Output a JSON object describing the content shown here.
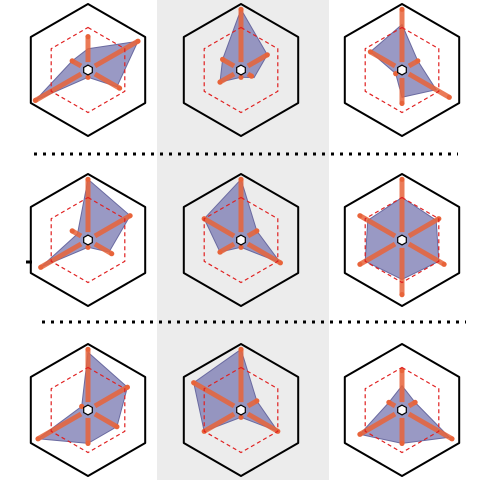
{
  "chart_data": {
    "type": "radar",
    "layout": {
      "rows": 3,
      "cols": 3,
      "highlight_column": 1
    },
    "max_value": 1.0,
    "reference_level": 0.7,
    "center_hole_level": 0.12,
    "axes_count": 6,
    "panels": [
      {
        "row": 0,
        "col": 0,
        "values": [
          0.35,
          0.95,
          0.55,
          0.12,
          1.0,
          0.3
        ],
        "spikes": [
          0.55,
          0.95,
          0.6,
          0.12,
          1.0,
          0.3
        ]
      },
      {
        "row": 0,
        "col": 1,
        "values": [
          1.0,
          0.5,
          0.25,
          0.12,
          0.4,
          0.35
        ],
        "spikes": [
          1.0,
          0.5,
          0.2,
          0.12,
          0.4,
          0.35
        ]
      },
      {
        "row": 0,
        "col": 2,
        "values": [
          0.75,
          0.3,
          0.65,
          0.45,
          0.12,
          0.6
        ],
        "spikes": [
          1.0,
          0.3,
          0.9,
          0.55,
          0.12,
          0.6
        ]
      },
      {
        "row": 1,
        "col": 0,
        "values": [
          1.0,
          0.8,
          0.4,
          0.12,
          0.9,
          0.2
        ],
        "spikes": [
          1.0,
          0.8,
          0.45,
          0.12,
          0.9,
          0.3
        ]
      },
      {
        "row": 1,
        "col": 1,
        "values": [
          1.0,
          0.3,
          0.75,
          0.12,
          0.4,
          0.7
        ],
        "spikes": [
          1.0,
          0.3,
          0.75,
          0.12,
          0.4,
          0.7
        ]
      },
      {
        "row": 1,
        "col": 2,
        "values": [
          0.7,
          0.65,
          0.7,
          0.65,
          0.7,
          0.65
        ],
        "spikes": [
          1.0,
          0.7,
          0.8,
          0.9,
          0.8,
          0.8
        ]
      },
      {
        "row": 2,
        "col": 0,
        "values": [
          0.95,
          0.75,
          0.55,
          0.55,
          0.95,
          0.12
        ],
        "spikes": [
          1.0,
          0.75,
          0.55,
          0.55,
          0.95,
          0.12
        ]
      },
      {
        "row": 2,
        "col": 1,
        "values": [
          1.0,
          0.3,
          0.7,
          0.12,
          0.7,
          0.9
        ],
        "spikes": [
          1.0,
          0.3,
          0.7,
          0.12,
          0.7,
          0.9
        ]
      },
      {
        "row": 2,
        "col": 2,
        "values": [
          0.4,
          0.25,
          0.9,
          0.55,
          0.8,
          0.25
        ],
        "spikes": [
          0.65,
          0.25,
          0.95,
          0.55,
          0.8,
          0.25
        ]
      }
    ],
    "colors": {
      "hexagon_outline": "#000000",
      "fill": "#7f7fb5",
      "fill_opacity": 0.8,
      "reference_line": "#e02020",
      "spike": "#e8643a",
      "highlight_band": "#ececec",
      "divider": "#000000"
    }
  }
}
